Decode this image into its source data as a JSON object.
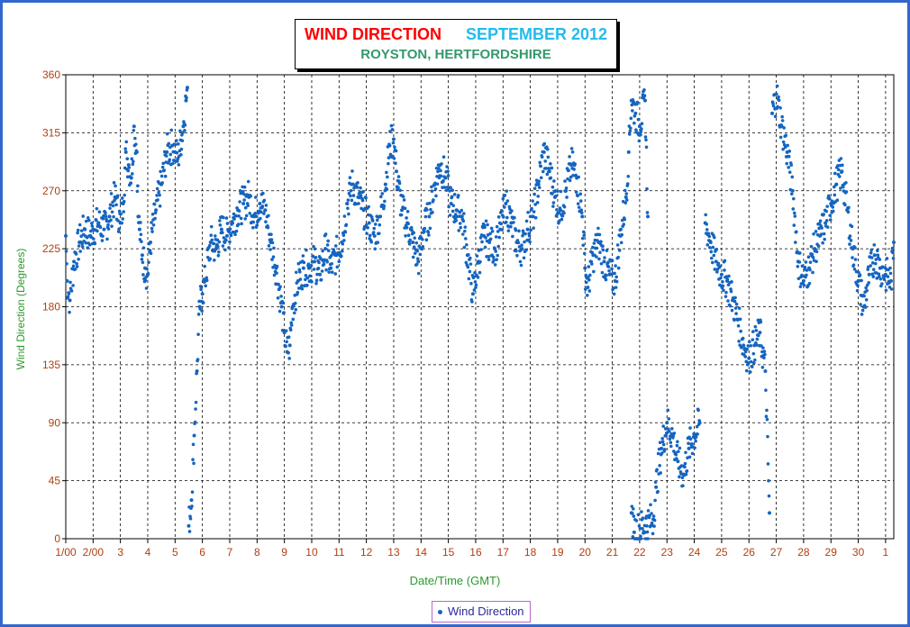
{
  "chart_data": {
    "type": "scatter",
    "title": "WIND DIRECTION",
    "title_period": "SEPTEMBER 2012",
    "subtitle": "ROYSTON, HERTFORDSHIRE",
    "xlabel": "Date/Time (GMT)",
    "ylabel": "Wind Direction (Degrees)",
    "ylim": [
      0,
      360
    ],
    "xlim": [
      1,
      31.3
    ],
    "yticks": [
      0,
      45,
      90,
      135,
      180,
      225,
      270,
      315,
      360
    ],
    "xtick_labels": [
      "1/00",
      "2/00",
      "3",
      "4",
      "5",
      "6",
      "7",
      "8",
      "9",
      "10",
      "11",
      "12",
      "13",
      "14",
      "15",
      "16",
      "17",
      "18",
      "19",
      "20",
      "21",
      "22",
      "23",
      "24",
      "25",
      "26",
      "27",
      "28",
      "29",
      "30",
      "1"
    ],
    "grid": true,
    "legend_position": "bottom-center",
    "series": [
      {
        "name": "Wind Direction",
        "color": "#1565c0",
        "x_unit": "day of month",
        "points": [
          [
            1.0,
            235
          ],
          [
            1.05,
            200
          ],
          [
            1.15,
            185
          ],
          [
            1.3,
            215
          ],
          [
            1.5,
            230
          ],
          [
            1.7,
            240
          ],
          [
            1.9,
            235
          ],
          [
            2.0,
            240
          ],
          [
            2.2,
            245
          ],
          [
            2.4,
            240
          ],
          [
            2.6,
            250
          ],
          [
            2.8,
            265
          ],
          [
            3.0,
            245
          ],
          [
            3.1,
            260
          ],
          [
            3.2,
            300
          ],
          [
            3.3,
            290
          ],
          [
            3.4,
            280
          ],
          [
            3.5,
            320
          ],
          [
            3.6,
            300
          ],
          [
            3.65,
            250
          ],
          [
            3.7,
            240
          ],
          [
            3.8,
            220
          ],
          [
            3.9,
            210
          ],
          [
            4.0,
            205
          ],
          [
            4.1,
            230
          ],
          [
            4.3,
            255
          ],
          [
            4.5,
            275
          ],
          [
            4.7,
            300
          ],
          [
            4.9,
            305
          ],
          [
            5.0,
            300
          ],
          [
            5.1,
            295
          ],
          [
            5.3,
            320
          ],
          [
            5.4,
            340
          ],
          [
            5.45,
            350
          ],
          [
            5.5,
            10
          ],
          [
            5.6,
            30
          ],
          [
            5.7,
            80
          ],
          [
            5.8,
            130
          ],
          [
            5.9,
            180
          ],
          [
            6.0,
            190
          ],
          [
            6.1,
            200
          ],
          [
            6.3,
            230
          ],
          [
            6.5,
            225
          ],
          [
            6.7,
            240
          ],
          [
            6.9,
            235
          ],
          [
            7.1,
            245
          ],
          [
            7.3,
            255
          ],
          [
            7.5,
            260
          ],
          [
            7.7,
            265
          ],
          [
            7.9,
            250
          ],
          [
            8.1,
            260
          ],
          [
            8.3,
            255
          ],
          [
            8.5,
            230
          ],
          [
            8.7,
            210
          ],
          [
            8.9,
            180
          ],
          [
            9.0,
            160
          ],
          [
            9.1,
            145
          ],
          [
            9.2,
            150
          ],
          [
            9.3,
            180
          ],
          [
            9.5,
            200
          ],
          [
            9.7,
            210
          ],
          [
            9.9,
            210
          ],
          [
            10.1,
            215
          ],
          [
            10.3,
            205
          ],
          [
            10.5,
            225
          ],
          [
            10.7,
            210
          ],
          [
            10.9,
            220
          ],
          [
            11.1,
            230
          ],
          [
            11.3,
            260
          ],
          [
            11.5,
            275
          ],
          [
            11.7,
            265
          ],
          [
            11.9,
            255
          ],
          [
            12.1,
            245
          ],
          [
            12.3,
            235
          ],
          [
            12.5,
            250
          ],
          [
            12.7,
            275
          ],
          [
            12.85,
            305
          ],
          [
            13.0,
            310
          ],
          [
            13.1,
            285
          ],
          [
            13.3,
            255
          ],
          [
            13.5,
            245
          ],
          [
            13.7,
            230
          ],
          [
            13.9,
            215
          ],
          [
            14.1,
            240
          ],
          [
            14.3,
            250
          ],
          [
            14.5,
            275
          ],
          [
            14.7,
            290
          ],
          [
            14.9,
            280
          ],
          [
            15.1,
            260
          ],
          [
            15.3,
            255
          ],
          [
            15.5,
            250
          ],
          [
            15.7,
            220
          ],
          [
            15.9,
            190
          ],
          [
            16.1,
            215
          ],
          [
            16.3,
            235
          ],
          [
            16.5,
            230
          ],
          [
            16.7,
            225
          ],
          [
            16.9,
            240
          ],
          [
            17.1,
            260
          ],
          [
            17.3,
            245
          ],
          [
            17.5,
            230
          ],
          [
            17.7,
            225
          ],
          [
            17.9,
            240
          ],
          [
            18.1,
            250
          ],
          [
            18.3,
            275
          ],
          [
            18.5,
            300
          ],
          [
            18.7,
            285
          ],
          [
            18.9,
            265
          ],
          [
            19.1,
            255
          ],
          [
            19.3,
            270
          ],
          [
            19.5,
            290
          ],
          [
            19.7,
            280
          ],
          [
            19.9,
            250
          ],
          [
            20.0,
            210
          ],
          [
            20.1,
            195
          ],
          [
            20.3,
            220
          ],
          [
            20.5,
            230
          ],
          [
            20.7,
            215
          ],
          [
            20.9,
            205
          ],
          [
            21.1,
            200
          ],
          [
            21.3,
            235
          ],
          [
            21.5,
            265
          ],
          [
            21.6,
            300
          ],
          [
            21.7,
            340
          ],
          [
            21.85,
            330
          ],
          [
            22.0,
            320
          ],
          [
            22.2,
            340
          ],
          [
            22.3,
            250
          ],
          [
            21.7,
            20
          ],
          [
            21.8,
            5
          ],
          [
            22.5,
            15
          ],
          [
            22.6,
            40
          ],
          [
            22.8,
            70
          ],
          [
            23.0,
            90
          ],
          [
            23.2,
            80
          ],
          [
            23.4,
            60
          ],
          [
            23.6,
            50
          ],
          [
            23.8,
            70
          ],
          [
            24.0,
            80
          ],
          [
            24.2,
            90
          ],
          [
            24.4,
            245
          ],
          [
            24.6,
            230
          ],
          [
            24.8,
            215
          ],
          [
            25.0,
            205
          ],
          [
            25.2,
            200
          ],
          [
            25.4,
            185
          ],
          [
            25.6,
            170
          ],
          [
            25.8,
            150
          ],
          [
            26.0,
            140
          ],
          [
            26.2,
            150
          ],
          [
            26.4,
            160
          ],
          [
            26.6,
            130
          ],
          [
            26.75,
            20
          ],
          [
            26.85,
            330
          ],
          [
            27.0,
            345
          ],
          [
            27.2,
            320
          ],
          [
            27.4,
            300
          ],
          [
            27.6,
            270
          ],
          [
            27.8,
            215
          ],
          [
            28.0,
            200
          ],
          [
            28.2,
            210
          ],
          [
            28.4,
            225
          ],
          [
            28.6,
            235
          ],
          [
            28.8,
            245
          ],
          [
            29.0,
            260
          ],
          [
            29.2,
            275
          ],
          [
            29.4,
            285
          ],
          [
            29.6,
            255
          ],
          [
            29.8,
            225
          ],
          [
            30.0,
            200
          ],
          [
            30.2,
            180
          ],
          [
            30.4,
            205
          ],
          [
            30.6,
            220
          ],
          [
            30.8,
            210
          ],
          [
            31.0,
            205
          ],
          [
            31.2,
            200
          ],
          [
            31.3,
            230
          ]
        ]
      }
    ]
  }
}
